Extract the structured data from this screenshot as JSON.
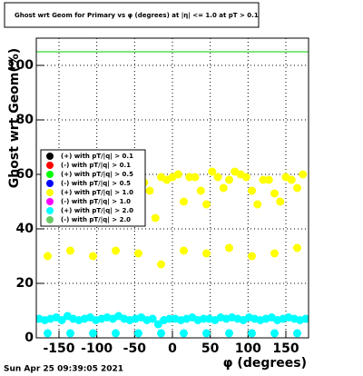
{
  "chart_data": {
    "type": "scatter",
    "title": "Ghost wrt Geom for Primary vs φ (degrees) at |η| <= 1.0 at pT > 0.1",
    "x_label": "φ (degrees)",
    "y_label": "Ghost wrt Geom(%)",
    "timestamp": "Sun Apr 25 09:39:05 2021",
    "xlim": [
      -180,
      180
    ],
    "ylim": [
      0,
      110
    ],
    "xticks": [
      -150,
      -100,
      -50,
      0,
      50,
      100,
      150
    ],
    "yticks": [
      0,
      20,
      40,
      60,
      80,
      100
    ],
    "grid": true,
    "legend": "left",
    "reference_line": {
      "value": 105,
      "color": "#00cc00"
    },
    "series": [
      {
        "name": "(+) with pT/|q| > 0.1",
        "color": "#000000",
        "x": [],
        "values": []
      },
      {
        "name": "(-) with pT/|q| > 0.1",
        "color": "#ff0000",
        "x": [],
        "values": []
      },
      {
        "name": "(+) with pT/|q| > 0.5",
        "color": "#00ff00",
        "x": [],
        "values": []
      },
      {
        "name": "(-) with pT/|q| > 0.5",
        "color": "#0000ff",
        "x": [],
        "values": []
      },
      {
        "name": "(+) with pT/|q| > 1.0",
        "color": "#ffff00",
        "x": [
          -165,
          -135,
          -105,
          -75,
          -45,
          -15,
          15,
          45,
          75,
          105,
          135,
          165,
          -37.5,
          -30,
          -22.5,
          -15,
          -7.5,
          0,
          7.5,
          15,
          22.5,
          30,
          37.5,
          45,
          52.5,
          60,
          67.5,
          75,
          82.5,
          90,
          97.5,
          105,
          112.5,
          120,
          127.5,
          135,
          142.5,
          150,
          157.5,
          165,
          172.5
        ],
        "values": [
          30,
          32,
          30,
          32,
          31,
          27,
          32,
          31,
          33,
          30,
          31,
          33,
          57,
          54,
          44,
          59,
          58,
          59,
          60,
          50,
          59,
          59,
          54,
          49,
          61,
          59,
          55,
          58,
          61,
          60,
          59,
          54,
          49,
          58,
          58,
          53,
          50,
          59,
          58,
          55,
          60
        ]
      },
      {
        "name": "(-) with pT/|q| > 1.0",
        "color": "#ff00ff",
        "x": [],
        "values": []
      },
      {
        "name": "(+) with pT/|q| > 2.0",
        "color": "#00ffff",
        "x": [
          -176.25,
          -168.75,
          -161.25,
          -153.75,
          -146.25,
          -138.75,
          -131.25,
          -123.75,
          -116.25,
          -108.75,
          -101.25,
          -93.75,
          -86.25,
          -78.75,
          -71.25,
          -63.75,
          -56.25,
          -48.75,
          -41.25,
          -33.75,
          -26.25,
          -18.75,
          -11.25,
          -3.75,
          3.75,
          11.25,
          18.75,
          26.25,
          33.75,
          41.25,
          48.75,
          56.25,
          63.75,
          71.25,
          78.75,
          86.25,
          93.75,
          101.25,
          108.75,
          116.25,
          123.75,
          131.25,
          138.75,
          146.25,
          153.75,
          161.25,
          168.75,
          176.25,
          -165,
          -135,
          -105,
          -75,
          -45,
          -15,
          15,
          45,
          75,
          105,
          135,
          165
        ],
        "values": [
          7,
          6.5,
          7,
          7.5,
          6.5,
          8,
          7,
          6.5,
          7,
          7.5,
          6.5,
          7,
          7.5,
          7,
          8,
          7,
          6.5,
          7,
          7.5,
          6.5,
          7,
          5,
          6.5,
          7,
          7,
          6.5,
          7,
          7.5,
          6.5,
          7,
          7,
          6.5,
          7.5,
          7,
          7.5,
          7,
          6.5,
          7.5,
          7,
          6.5,
          7,
          7.5,
          6.5,
          7,
          7.5,
          7,
          6.5,
          7,
          1.7,
          1.7,
          1.7,
          1.7,
          1.7,
          1.7,
          1.7,
          1.7,
          1.7,
          1.7,
          1.7,
          1.7
        ]
      },
      {
        "name": "(-) with pT/|q| > 2.0",
        "color": "#66cc66",
        "x": [],
        "values": []
      }
    ]
  }
}
